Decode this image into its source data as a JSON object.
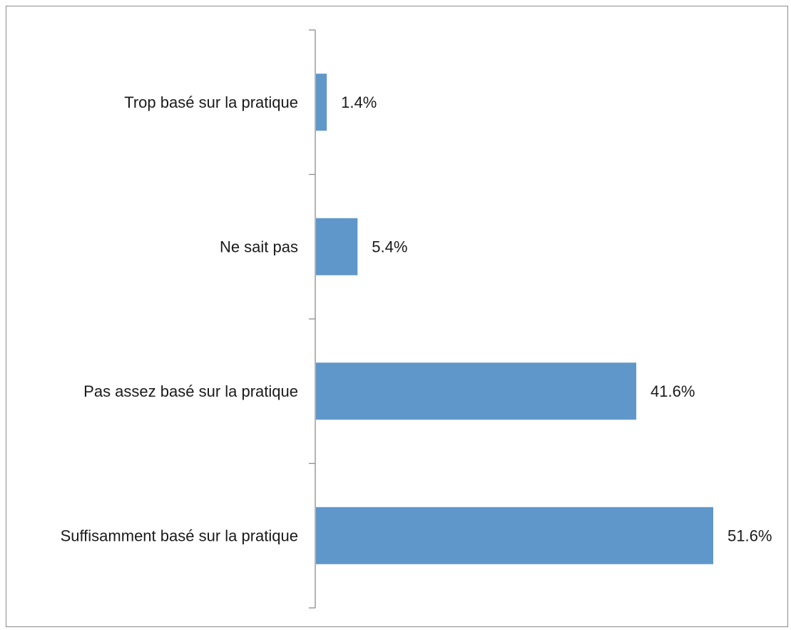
{
  "chart_data": {
    "type": "bar",
    "orientation": "horizontal",
    "categories": [
      "Trop basé sur la pratique",
      "Ne sait pas",
      "Pas assez basé sur la pratique",
      "Suffisamment basé sur la pratique"
    ],
    "values": [
      1.4,
      5.4,
      41.6,
      51.6
    ],
    "value_labels": [
      "1.4%",
      "5.4%",
      "41.6%",
      "51.6%"
    ],
    "unit": "%",
    "xlim": [
      0,
      51.6
    ],
    "title": "",
    "xlabel": "",
    "ylabel": "",
    "grid": false,
    "legend": "none",
    "bar_color": "#6097ca",
    "axis_color": "#8c8c8c"
  }
}
